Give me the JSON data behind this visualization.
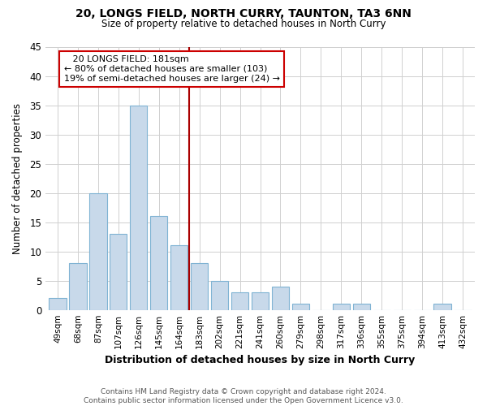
{
  "title_line1": "20, LONGS FIELD, NORTH CURRY, TAUNTON, TA3 6NN",
  "title_line2": "Size of property relative to detached houses in North Curry",
  "xlabel": "Distribution of detached houses by size in North Curry",
  "ylabel": "Number of detached properties",
  "categories": [
    "49sqm",
    "68sqm",
    "87sqm",
    "107sqm",
    "126sqm",
    "145sqm",
    "164sqm",
    "183sqm",
    "202sqm",
    "221sqm",
    "241sqm",
    "260sqm",
    "279sqm",
    "298sqm",
    "317sqm",
    "336sqm",
    "355sqm",
    "375sqm",
    "394sqm",
    "413sqm",
    "432sqm"
  ],
  "values": [
    2,
    8,
    20,
    13,
    35,
    16,
    11,
    8,
    5,
    3,
    3,
    4,
    1,
    0,
    1,
    1,
    0,
    0,
    0,
    1,
    0
  ],
  "bar_color": "#c8d9ea",
  "bar_edge_color": "#7fb3d3",
  "annotation_line1": "   20 LONGS FIELD: 181sqm",
  "annotation_line2": "← 80% of detached houses are smaller (103)",
  "annotation_line3": "19% of semi-detached houses are larger (24) →",
  "vline_color": "#aa0000",
  "annotation_box_color": "#cc0000",
  "ylim": [
    0,
    45
  ],
  "yticks": [
    0,
    5,
    10,
    15,
    20,
    25,
    30,
    35,
    40,
    45
  ],
  "footer_line1": "Contains HM Land Registry data © Crown copyright and database right 2024.",
  "footer_line2": "Contains public sector information licensed under the Open Government Licence v3.0.",
  "bg_color": "#ffffff",
  "plot_bg_color": "#ffffff",
  "grid_color": "#d0d0d0"
}
